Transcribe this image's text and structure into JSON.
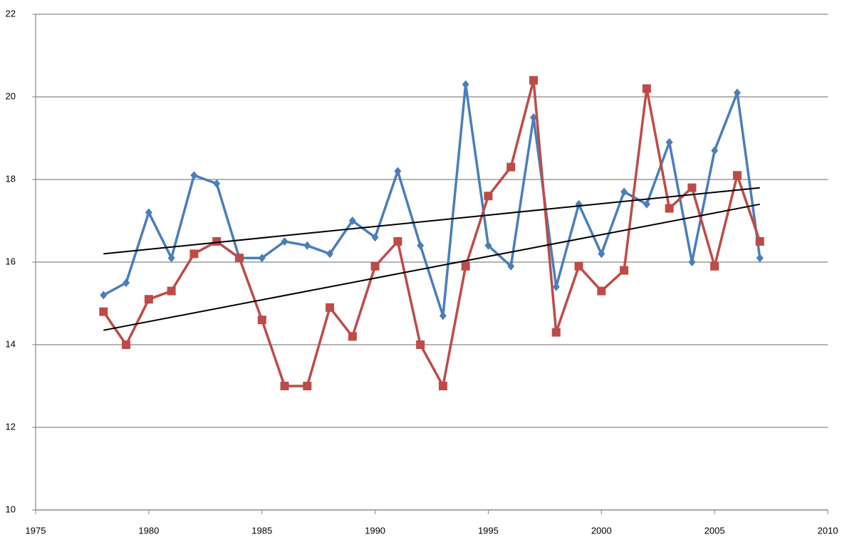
{
  "chart_data": {
    "type": "line",
    "x": [
      1978,
      1979,
      1980,
      1981,
      1982,
      1983,
      1984,
      1985,
      1986,
      1987,
      1988,
      1989,
      1990,
      1991,
      1992,
      1993,
      1994,
      1995,
      1996,
      1997,
      1998,
      1999,
      2000,
      2001,
      2002,
      2003,
      2004,
      2005,
      2006,
      2007
    ],
    "series": [
      {
        "color": "#4a7ebb",
        "marker": "diamond",
        "values": [
          15.2,
          15.5,
          17.2,
          16.1,
          18.1,
          17.9,
          16.1,
          16.1,
          16.5,
          16.4,
          16.2,
          17.0,
          16.6,
          18.2,
          16.4,
          14.7,
          20.3,
          16.4,
          15.9,
          19.5,
          15.4,
          17.4,
          16.2,
          17.7,
          17.4,
          18.9,
          16.0,
          18.7,
          20.1,
          16.1
        ]
      },
      {
        "color": "#be4b48",
        "marker": "square",
        "values": [
          14.8,
          14.0,
          15.1,
          15.3,
          16.2,
          16.5,
          16.1,
          14.6,
          13.0,
          13.0,
          14.9,
          14.2,
          15.9,
          16.5,
          14.0,
          13.0,
          15.9,
          17.6,
          18.3,
          20.4,
          14.3,
          15.9,
          15.3,
          15.8,
          20.2,
          17.3,
          17.8,
          15.9,
          18.1,
          16.5
        ]
      },
      {
        "color": "#000000",
        "marker": "none",
        "x": [
          1978,
          2007
        ],
        "values": [
          16.2,
          17.8
        ]
      },
      {
        "color": "#000000",
        "marker": "none",
        "x": [
          1978,
          2007
        ],
        "values": [
          14.35,
          17.4
        ]
      }
    ],
    "xlim": [
      1975,
      2010
    ],
    "xticks": [
      1975,
      1980,
      1985,
      1990,
      1995,
      2000,
      2005,
      2010
    ],
    "ylim": [
      10,
      22
    ],
    "yticks": [
      10,
      12,
      14,
      16,
      18,
      20,
      22
    ],
    "grid": true
  }
}
